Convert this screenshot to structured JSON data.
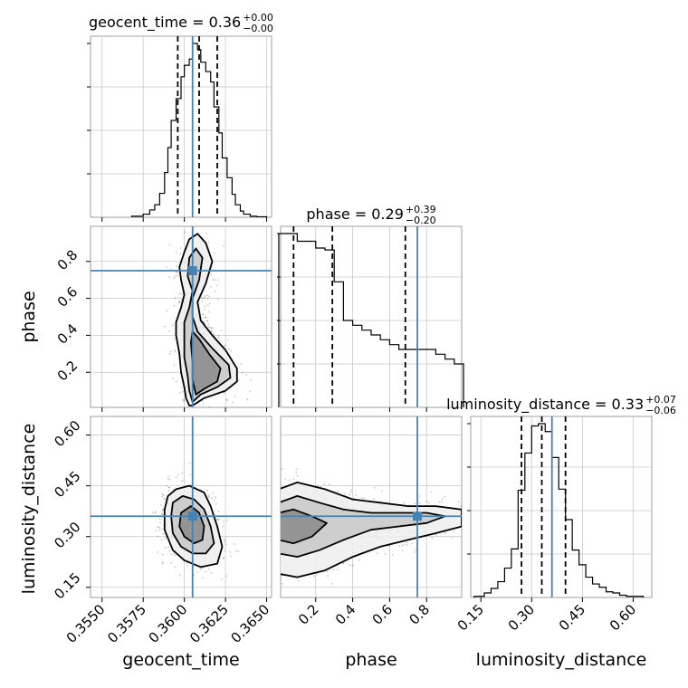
{
  "chart_data": {
    "type": "corner",
    "parameters": [
      "geocent_time",
      "phase",
      "luminosity_distance"
    ],
    "titles": [
      {
        "param": "geocent_time",
        "label": "geocent_time = 0.36",
        "sup": "+0.00",
        "sub": "−0.00"
      },
      {
        "param": "phase",
        "label": "phase = 0.29",
        "sup": "+0.39",
        "sub": "−0.20"
      },
      {
        "param": "luminosity_distance",
        "label": "luminosity_distance = 0.33",
        "sup": "+0.07",
        "sub": "−0.06"
      }
    ],
    "axes": {
      "geocent_time": {
        "range": [
          0.3543,
          0.3653
        ],
        "ticks": [
          0.355,
          0.3575,
          0.36,
          0.3625,
          0.365
        ],
        "tick_labels": [
          "0.3550",
          "0.3575",
          "0.3600",
          "0.3625",
          "0.3650"
        ]
      },
      "phase": {
        "range": [
          0.01,
          0.99
        ],
        "ticks": [
          0.2,
          0.4,
          0.6,
          0.8
        ],
        "tick_labels": [
          "0.2",
          "0.4",
          "0.6",
          "0.8"
        ]
      },
      "luminosity_distance": {
        "range": [
          0.12,
          0.655
        ],
        "ticks": [
          0.15,
          0.3,
          0.45,
          0.6
        ],
        "tick_labels": [
          "0.15",
          "0.30",
          "0.45",
          "0.60"
        ]
      }
    },
    "truths": {
      "geocent_time": 0.3605,
      "phase": 0.75,
      "luminosity_distance": 0.36
    },
    "quantiles": {
      "geocent_time": [
        0.3596,
        0.3609,
        0.362
      ],
      "phase": [
        0.08,
        0.29,
        0.685
      ],
      "luminosity_distance": [
        0.27,
        0.33,
        0.4
      ]
    },
    "histograms": {
      "geocent_time": {
        "edges": [
          0.3568,
          0.3575,
          0.3579,
          0.3582,
          0.3585,
          0.3588,
          0.359,
          0.3592,
          0.3595,
          0.3598,
          0.36,
          0.3603,
          0.3605,
          0.3608,
          0.361,
          0.3613,
          0.3616,
          0.3618,
          0.3621,
          0.3623,
          0.3626,
          0.3629,
          0.3631,
          0.3634,
          0.3636,
          0.364,
          0.3644,
          0.365
        ],
        "counts": [
          1,
          3,
          7,
          12,
          23,
          43,
          67,
          93,
          114,
          135,
          146,
          152,
          167,
          161,
          149,
          140,
          130,
          106,
          81,
          57,
          38,
          22,
          12,
          6,
          3,
          1,
          0.5
        ]
      },
      "phase": {
        "edges": [
          0.0,
          0.05,
          0.1,
          0.15,
          0.2,
          0.25,
          0.3,
          0.35,
          0.4,
          0.45,
          0.5,
          0.55,
          0.6,
          0.65,
          0.7,
          0.75,
          0.8,
          0.85,
          0.9,
          0.95,
          1.0
        ],
        "counts": [
          180,
          180,
          172,
          172,
          165,
          163,
          130,
          90,
          85,
          80,
          75,
          70,
          65,
          60,
          60,
          60,
          60,
          55,
          50,
          45
        ]
      },
      "luminosity_distance": {
        "edges": [
          0.13,
          0.16,
          0.18,
          0.2,
          0.22,
          0.24,
          0.26,
          0.28,
          0.3,
          0.32,
          0.34,
          0.36,
          0.38,
          0.4,
          0.42,
          0.44,
          0.46,
          0.48,
          0.5,
          0.52,
          0.54,
          0.56,
          0.58,
          0.6,
          0.63
        ],
        "counts": [
          1,
          4,
          8,
          14,
          26,
          43,
          95,
          128,
          152,
          154,
          147,
          124,
          96,
          69,
          42,
          29,
          18,
          12,
          9,
          5,
          4,
          2,
          1,
          1
        ]
      }
    },
    "cells": {
      "phase_vs_geocent_time": {
        "x": "geocent_time",
        "y": "phase",
        "contours": [
          [
            [
              0.3603,
              0.02
            ],
            [
              0.3601,
              0.06
            ],
            [
              0.36,
              0.12
            ],
            [
              0.3598,
              0.2
            ],
            [
              0.3597,
              0.3
            ],
            [
              0.3595,
              0.4
            ],
            [
              0.3595,
              0.47
            ],
            [
              0.3598,
              0.55
            ],
            [
              0.36,
              0.62
            ],
            [
              0.3598,
              0.7
            ],
            [
              0.3597,
              0.77
            ],
            [
              0.36,
              0.85
            ],
            [
              0.3603,
              0.92
            ],
            [
              0.3608,
              0.95
            ],
            [
              0.3613,
              0.9
            ],
            [
              0.3617,
              0.8
            ],
            [
              0.3613,
              0.68
            ],
            [
              0.3608,
              0.58
            ],
            [
              0.361,
              0.48
            ],
            [
              0.3617,
              0.4
            ],
            [
              0.3625,
              0.32
            ],
            [
              0.3632,
              0.22
            ],
            [
              0.3632,
              0.15
            ],
            [
              0.3625,
              0.1
            ],
            [
              0.3612,
              0.06
            ],
            [
              0.3605,
              0.02
            ]
          ],
          [
            [
              0.3605,
              0.04
            ],
            [
              0.3603,
              0.1
            ],
            [
              0.3602,
              0.18
            ],
            [
              0.36,
              0.28
            ],
            [
              0.36,
              0.38
            ],
            [
              0.36,
              0.47
            ],
            [
              0.3603,
              0.55
            ],
            [
              0.3605,
              0.64
            ],
            [
              0.3602,
              0.72
            ],
            [
              0.3603,
              0.82
            ],
            [
              0.3607,
              0.87
            ],
            [
              0.3611,
              0.82
            ],
            [
              0.3609,
              0.7
            ],
            [
              0.3605,
              0.6
            ],
            [
              0.3605,
              0.5
            ],
            [
              0.3608,
              0.42
            ],
            [
              0.3617,
              0.33
            ],
            [
              0.3627,
              0.24
            ],
            [
              0.3628,
              0.17
            ],
            [
              0.362,
              0.12
            ],
            [
              0.361,
              0.08
            ]
          ],
          [
            [
              0.3607,
              0.08
            ],
            [
              0.3605,
              0.16
            ],
            [
              0.3605,
              0.26
            ],
            [
              0.3604,
              0.36
            ],
            [
              0.3605,
              0.42
            ],
            [
              0.3609,
              0.38
            ],
            [
              0.3615,
              0.3
            ],
            [
              0.3622,
              0.22
            ],
            [
              0.362,
              0.15
            ],
            [
              0.3612,
              0.11
            ]
          ]
        ]
      },
      "luminosity_distance_vs_geocent_time": {
        "x": "geocent_time",
        "y": "luminosity_distance",
        "contours": [
          [
            [
              0.359,
              0.42
            ],
            [
              0.3588,
              0.38
            ],
            [
              0.3588,
              0.32
            ],
            [
              0.3593,
              0.26
            ],
            [
              0.36,
              0.23
            ],
            [
              0.361,
              0.21
            ],
            [
              0.362,
              0.22
            ],
            [
              0.3623,
              0.27
            ],
            [
              0.362,
              0.33
            ],
            [
              0.3616,
              0.39
            ],
            [
              0.3612,
              0.43
            ],
            [
              0.3603,
              0.45
            ],
            [
              0.3595,
              0.44
            ]
          ],
          [
            [
              0.3593,
              0.4
            ],
            [
              0.3592,
              0.36
            ],
            [
              0.3593,
              0.31
            ],
            [
              0.3598,
              0.27
            ],
            [
              0.3605,
              0.25
            ],
            [
              0.3613,
              0.25
            ],
            [
              0.3618,
              0.28
            ],
            [
              0.3616,
              0.33
            ],
            [
              0.3612,
              0.38
            ],
            [
              0.3606,
              0.41
            ],
            [
              0.3599,
              0.42
            ]
          ],
          [
            [
              0.3598,
              0.37
            ],
            [
              0.3597,
              0.33
            ],
            [
              0.36,
              0.3
            ],
            [
              0.3606,
              0.28
            ],
            [
              0.3611,
              0.29
            ],
            [
              0.3612,
              0.33
            ],
            [
              0.3609,
              0.37
            ],
            [
              0.3604,
              0.39
            ]
          ]
        ]
      },
      "luminosity_distance_vs_phase": {
        "x": "phase",
        "y": "luminosity_distance",
        "contours": [
          [
            [
              0.0,
              0.44
            ],
            [
              0.1,
              0.46
            ],
            [
              0.25,
              0.44
            ],
            [
              0.4,
              0.41
            ],
            [
              0.55,
              0.4
            ],
            [
              0.7,
              0.39
            ],
            [
              0.85,
              0.39
            ],
            [
              0.99,
              0.38
            ],
            [
              0.99,
              0.33
            ],
            [
              0.85,
              0.31
            ],
            [
              0.7,
              0.29
            ],
            [
              0.55,
              0.27
            ],
            [
              0.4,
              0.24
            ],
            [
              0.25,
              0.2
            ],
            [
              0.1,
              0.18
            ],
            [
              0.0,
              0.19
            ]
          ],
          [
            [
              0.0,
              0.4
            ],
            [
              0.1,
              0.42
            ],
            [
              0.22,
              0.4
            ],
            [
              0.35,
              0.38
            ],
            [
              0.5,
              0.37
            ],
            [
              0.65,
              0.37
            ],
            [
              0.8,
              0.37
            ],
            [
              0.9,
              0.36
            ],
            [
              0.8,
              0.34
            ],
            [
              0.65,
              0.33
            ],
            [
              0.5,
              0.32
            ],
            [
              0.35,
              0.29
            ],
            [
              0.22,
              0.26
            ],
            [
              0.1,
              0.24
            ],
            [
              0.0,
              0.25
            ]
          ],
          [
            [
              0.0,
              0.37
            ],
            [
              0.08,
              0.38
            ],
            [
              0.18,
              0.36
            ],
            [
              0.26,
              0.34
            ],
            [
              0.18,
              0.3
            ],
            [
              0.08,
              0.28
            ],
            [
              0.0,
              0.29
            ]
          ]
        ]
      }
    },
    "grid": true
  }
}
